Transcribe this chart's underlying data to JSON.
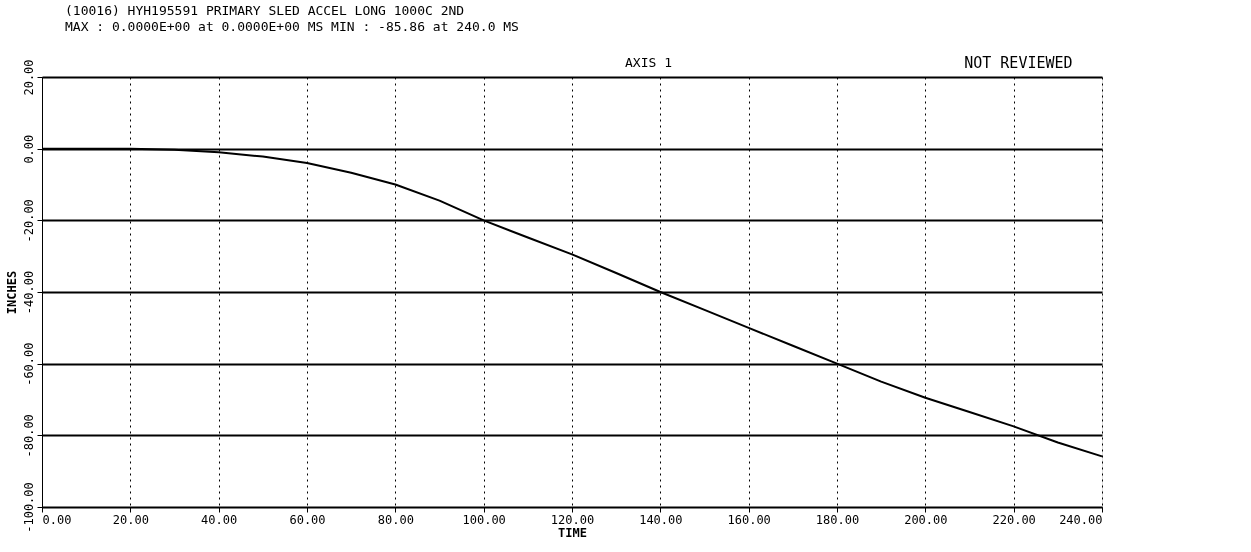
{
  "chart_data": {
    "type": "line",
    "title": "(10016) HYH195591 PRIMARY SLED ACCEL LONG 1000C 2ND",
    "subtitle": "MAX : 0.0000E+00 at 0.0000E+00 MS     MIN : -85.86   at 240.0   MS",
    "xlabel": "TIME",
    "ylabel": "INCHES",
    "annotations": [
      "AXIS 1",
      "NOT REVIEWED"
    ],
    "series": [
      {
        "color": "#000000",
        "x": [
          0,
          10,
          20,
          30,
          40,
          50,
          60,
          70,
          80,
          90,
          100,
          110,
          120,
          130,
          140,
          150,
          160,
          170,
          180,
          190,
          200,
          210,
          220,
          230,
          240
        ],
        "values": [
          0,
          0,
          0,
          -0.3,
          -1,
          -2.2,
          -4,
          -6.7,
          -10,
          -14.5,
          -20,
          -24.8,
          -29.5,
          -34.7,
          -40,
          -45,
          -50,
          -55,
          -60,
          -65,
          -69.5,
          -73.5,
          -77.5,
          -82,
          -85.86
        ]
      }
    ],
    "xlim": [
      0,
      240
    ],
    "xticks": [
      {
        "value": 0,
        "label": "0.00"
      },
      {
        "value": 20,
        "label": "20.00"
      },
      {
        "value": 40,
        "label": "40.00"
      },
      {
        "value": 60,
        "label": "60.00"
      },
      {
        "value": 80,
        "label": "80.00"
      },
      {
        "value": 100,
        "label": "100.00"
      },
      {
        "value": 120,
        "label": "120.00"
      },
      {
        "value": 140,
        "label": "140.00"
      },
      {
        "value": 160,
        "label": "160.00"
      },
      {
        "value": 180,
        "label": "180.00"
      },
      {
        "value": 200,
        "label": "200.00"
      },
      {
        "value": 220,
        "label": "220.00"
      },
      {
        "value": 240,
        "label": "240.00"
      }
    ],
    "ylim": [
      -100,
      20
    ],
    "yticks": [
      {
        "value": -100,
        "label": "-100.00"
      },
      {
        "value": -80,
        "label": "-80.00"
      },
      {
        "value": -60,
        "label": "-60.00"
      },
      {
        "value": -40,
        "label": "-40.00"
      },
      {
        "value": -20,
        "label": "-20.00"
      },
      {
        "value": 0,
        "label": "0.00"
      },
      {
        "value": 20,
        "label": "20.00"
      }
    ],
    "grid": true,
    "marker": "none",
    "line_style": "solid"
  }
}
